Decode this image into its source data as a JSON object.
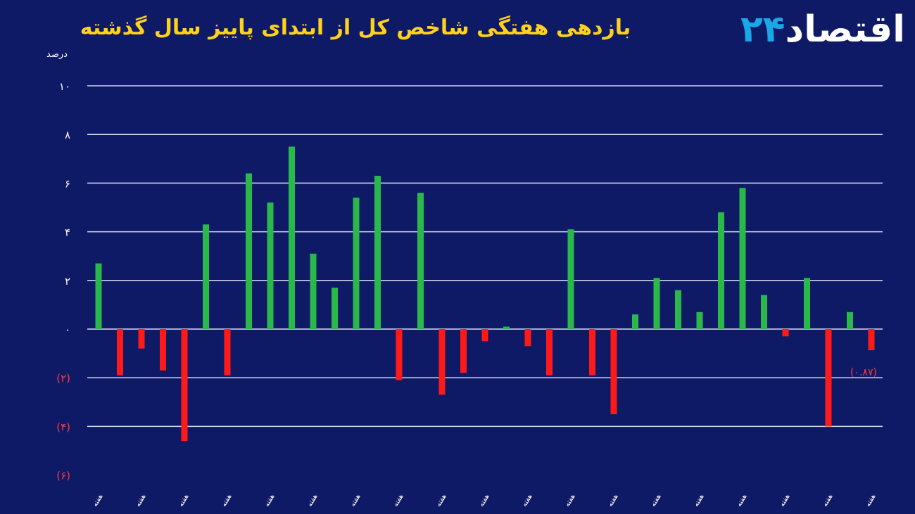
{
  "chart_data": {
    "type": "bar",
    "title": "بازدهی هفتگی شاخص کل از ابتدای پاییز سال گذشته",
    "ylabel": "درصد",
    "ylim": [
      -6,
      10
    ],
    "yticks": [
      {
        "value": 10,
        "label": "۱۰"
      },
      {
        "value": 8,
        "label": "۸"
      },
      {
        "value": 6,
        "label": "۶"
      },
      {
        "value": 4,
        "label": "۴"
      },
      {
        "value": 2,
        "label": "۲"
      },
      {
        "value": 0,
        "label": "۰"
      },
      {
        "value": -2,
        "label": "(۲)"
      },
      {
        "value": -4,
        "label": "(۴)"
      },
      {
        "value": -6,
        "label": "(۶)"
      }
    ],
    "grid": true,
    "values": [
      2.7,
      -1.9,
      -0.8,
      -1.7,
      -4.6,
      4.3,
      -1.9,
      6.4,
      5.2,
      7.5,
      3.1,
      1.7,
      5.4,
      6.3,
      -2.1,
      5.6,
      -2.7,
      -1.8,
      -0.5,
      0.1,
      -0.7,
      -1.9,
      4.1,
      -1.9,
      -3.5,
      0.6,
      2.1,
      1.6,
      0.7,
      4.8,
      5.8,
      1.4,
      -0.3,
      2.1,
      -4.0,
      0.7,
      -0.87
    ],
    "annotations": [
      {
        "index": 36,
        "label": "(۰.۸۷)"
      }
    ],
    "category_label_prefix": "هفته",
    "colors": {
      "positive": "#2ab84a",
      "negative": "#ff1a1a",
      "background": "#0f1a66",
      "grid": "#d8dcf0",
      "title": "#ffd21a",
      "negative_label": "#ff3b3b"
    }
  },
  "logo": {
    "text": "اقتصاد",
    "accent": "۲۴"
  }
}
